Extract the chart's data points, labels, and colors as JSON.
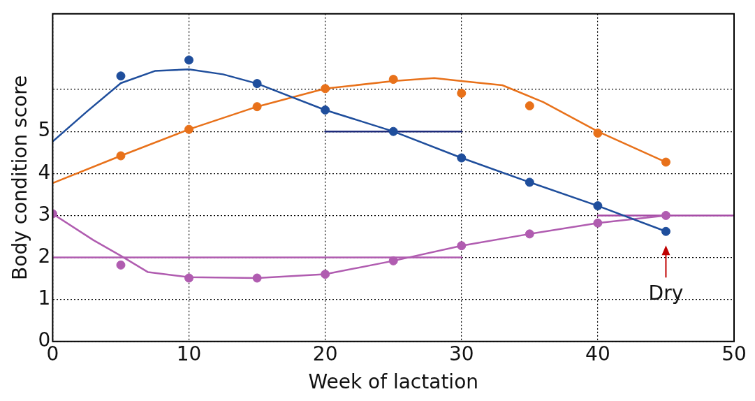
{
  "chart_data": {
    "type": "scatter",
    "xlabel": "Week of lactation",
    "ylabel": "Body condition score",
    "xlim": [
      0,
      50
    ],
    "xticks": [
      0,
      10,
      20,
      30,
      40,
      50
    ],
    "ylim": [
      0,
      7.8
    ],
    "yticks": [
      0,
      1,
      2,
      3,
      4,
      5,
      {
        "value": 6,
        "label": null
      }
    ],
    "grid": true,
    "legend": false,
    "marker": "circle",
    "annotations": [
      {
        "text": "Dry",
        "x": 45,
        "y": 2.62
      }
    ],
    "series": [
      {
        "color": "#1f4e9c",
        "x": [
          5,
          10,
          15,
          20,
          25,
          30,
          35,
          40,
          45
        ],
        "values": [
          6.32,
          6.7,
          6.14,
          5.51,
          5.0,
          4.37,
          3.79,
          3.23,
          2.62
        ]
      },
      {
        "type": "line",
        "marker": "none",
        "color": "#1f4e9c",
        "x": [
          0,
          2.5,
          5,
          7.5,
          10,
          12.5,
          15,
          20,
          25,
          30,
          35,
          40,
          45
        ],
        "values": [
          4.76,
          5.47,
          6.15,
          6.44,
          6.48,
          6.36,
          6.14,
          5.51,
          5.0,
          4.37,
          3.79,
          3.23,
          2.62
        ]
      },
      {
        "color": "#e8711a",
        "x": [
          5,
          10,
          15,
          20,
          25,
          30,
          35,
          40,
          45
        ],
        "values": [
          4.42,
          5.05,
          5.59,
          6.02,
          6.24,
          5.91,
          5.61,
          4.96,
          4.27
        ]
      },
      {
        "type": "line",
        "marker": "none",
        "color": "#e8711a",
        "x": [
          0,
          5,
          10,
          15,
          20,
          25,
          28,
          30,
          33,
          36,
          40,
          45
        ],
        "values": [
          3.77,
          4.42,
          5.05,
          5.59,
          6.02,
          6.2,
          6.27,
          6.2,
          6.1,
          5.7,
          5.0,
          4.27
        ]
      },
      {
        "color": "#b05cb0",
        "x": [
          0,
          5,
          10,
          15,
          20,
          25,
          30,
          35,
          40,
          45
        ],
        "values": [
          3.04,
          1.82,
          1.51,
          1.51,
          1.6,
          1.92,
          2.28,
          2.56,
          2.82,
          3.0
        ]
      },
      {
        "type": "line",
        "marker": "none",
        "color": "#b05cb0",
        "x": [
          0,
          3,
          5,
          7,
          10,
          15,
          20,
          25,
          30,
          35,
          40,
          45
        ],
        "values": [
          3.04,
          2.41,
          2.04,
          1.65,
          1.53,
          1.51,
          1.6,
          1.92,
          2.28,
          2.56,
          2.82,
          3.0
        ]
      },
      {
        "type": "line",
        "marker": "none",
        "color": "#1c2a7a",
        "x": [
          20,
          30
        ],
        "values": [
          5.0,
          5.0
        ]
      },
      {
        "type": "line",
        "marker": "none",
        "color": "#a64ca6",
        "x": [
          40,
          50
        ],
        "values": [
          3.0,
          3.0
        ]
      },
      {
        "type": "line",
        "marker": "none",
        "color": "#b05cb0",
        "x": [
          0,
          30
        ],
        "values": [
          2.0,
          2.0
        ]
      }
    ]
  }
}
